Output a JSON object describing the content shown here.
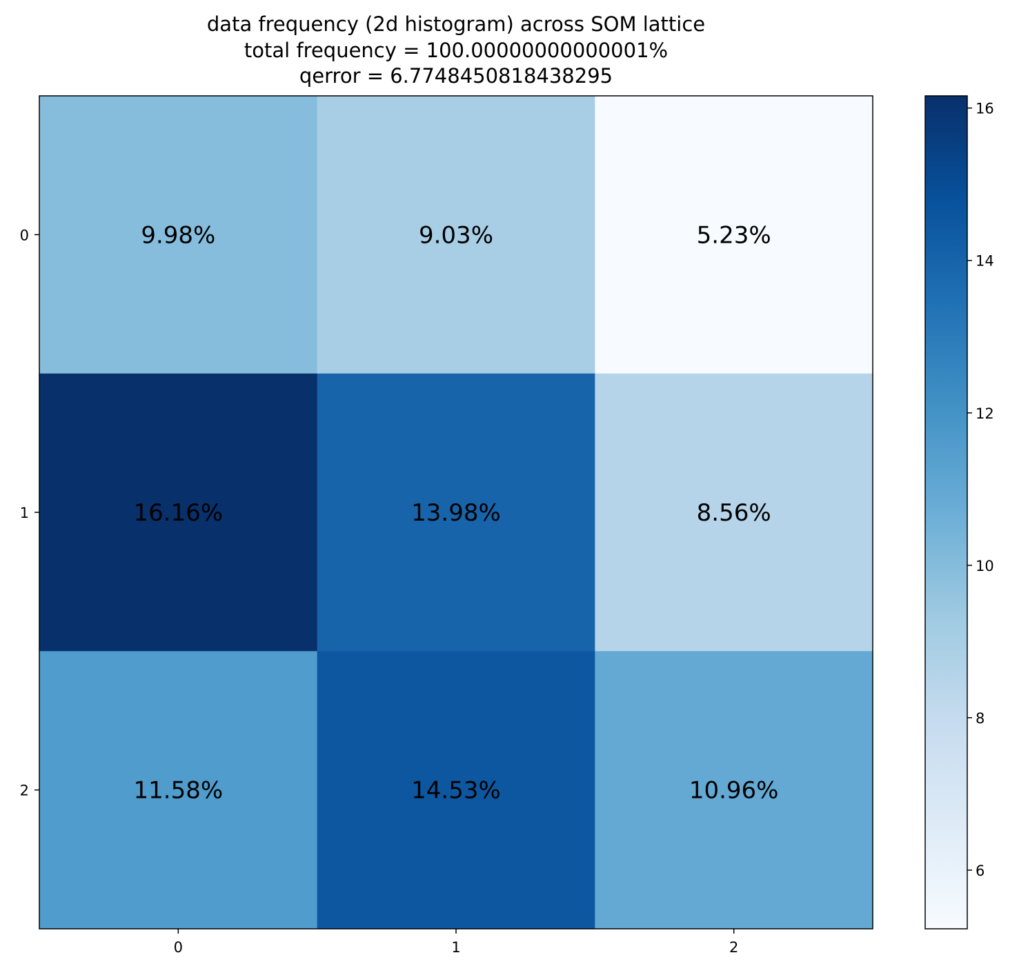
{
  "chart_data": {
    "type": "heatmap",
    "title_lines": [
      "data frequency (2d histogram) across SOM lattice",
      "total frequency = 100.00000000000001%",
      "qerror = 6.7748450818438295"
    ],
    "rows": [
      "0",
      "1",
      "2"
    ],
    "cols": [
      "0",
      "1",
      "2"
    ],
    "values": [
      [
        9.98,
        9.03,
        5.23
      ],
      [
        16.16,
        13.98,
        8.56
      ],
      [
        11.58,
        14.53,
        10.96
      ]
    ],
    "cell_labels": [
      [
        "9.98%",
        "9.03%",
        "5.23%"
      ],
      [
        "16.16%",
        "13.98%",
        "8.56%"
      ],
      [
        "11.58%",
        "14.53%",
        "10.96%"
      ]
    ],
    "colormap": "Blues",
    "colorbar": {
      "min": 5.23,
      "max": 16.16,
      "ticks": [
        6,
        8,
        10,
        12,
        14,
        16
      ],
      "tick_labels": [
        "6",
        "8",
        "10",
        "12",
        "14",
        "16"
      ]
    }
  }
}
